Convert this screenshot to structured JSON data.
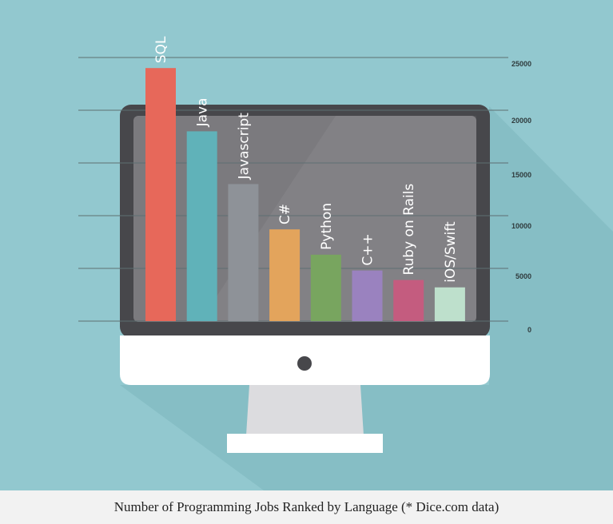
{
  "caption": "Number of Programming Jobs Ranked by Language (* Dice.com data)",
  "colors": {
    "background": "#92c8cf",
    "shadow": "#86bec5",
    "monitor_frame": "#47474b",
    "screen": "#7b7a7e",
    "chin": "#ffffff",
    "stand": "#dcdcdf",
    "gridline": "#5e6f72"
  },
  "chart_data": {
    "type": "bar",
    "title": "",
    "xlabel": "",
    "ylabel": "",
    "categories": [
      "SQL",
      "Java",
      "Javascript",
      "C#",
      "Python",
      "C++",
      "Ruby on Rails",
      "iOS/Swift"
    ],
    "values": [
      24000,
      18000,
      13000,
      8700,
      6300,
      4800,
      3900,
      3200
    ],
    "colors": [
      "#e7685a",
      "#60b2b9",
      "#8e9298",
      "#e3a45c",
      "#78a55f",
      "#9a82bf",
      "#c45c7f",
      "#bee0cc"
    ],
    "yticks": [
      25000,
      20000,
      15000,
      10000,
      5000,
      0
    ],
    "ylim": [
      0,
      25000
    ],
    "grid": true,
    "labels_on_bars": true
  }
}
